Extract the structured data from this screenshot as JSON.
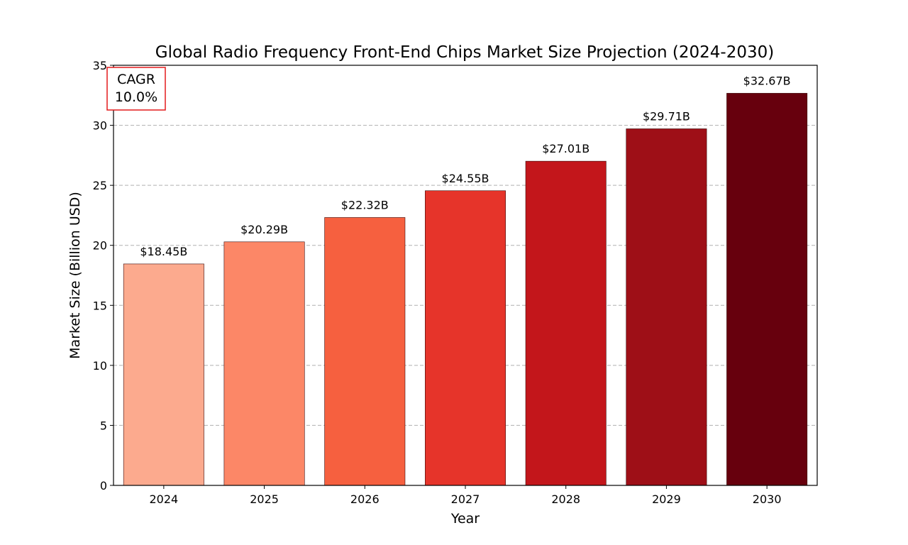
{
  "chart_data": {
    "type": "bar",
    "title": "Global Radio Frequency Front-End Chips Market Size Projection (2024-2030)",
    "xlabel": "Year",
    "ylabel": "Market Size (Billion USD)",
    "categories": [
      "2024",
      "2025",
      "2026",
      "2027",
      "2028",
      "2029",
      "2030"
    ],
    "values": [
      18.45,
      20.29,
      22.32,
      24.55,
      27.01,
      29.71,
      32.67
    ],
    "data_labels": [
      "$18.45B",
      "$20.29B",
      "$22.32B",
      "$24.55B",
      "$27.01B",
      "$29.71B",
      "$32.67B"
    ],
    "bar_colors": [
      "#fcaa8e",
      "#fc8767",
      "#f6603f",
      "#e6342a",
      "#c3161b",
      "#9e0f17",
      "#67000d"
    ],
    "ylim": [
      0,
      35
    ],
    "yticks": [
      0,
      5,
      10,
      15,
      20,
      25,
      30,
      35
    ],
    "grid": "y-dashed",
    "annotation": {
      "label": "CAGR",
      "value": "10.0%",
      "border_color": "#e31a1c"
    }
  }
}
